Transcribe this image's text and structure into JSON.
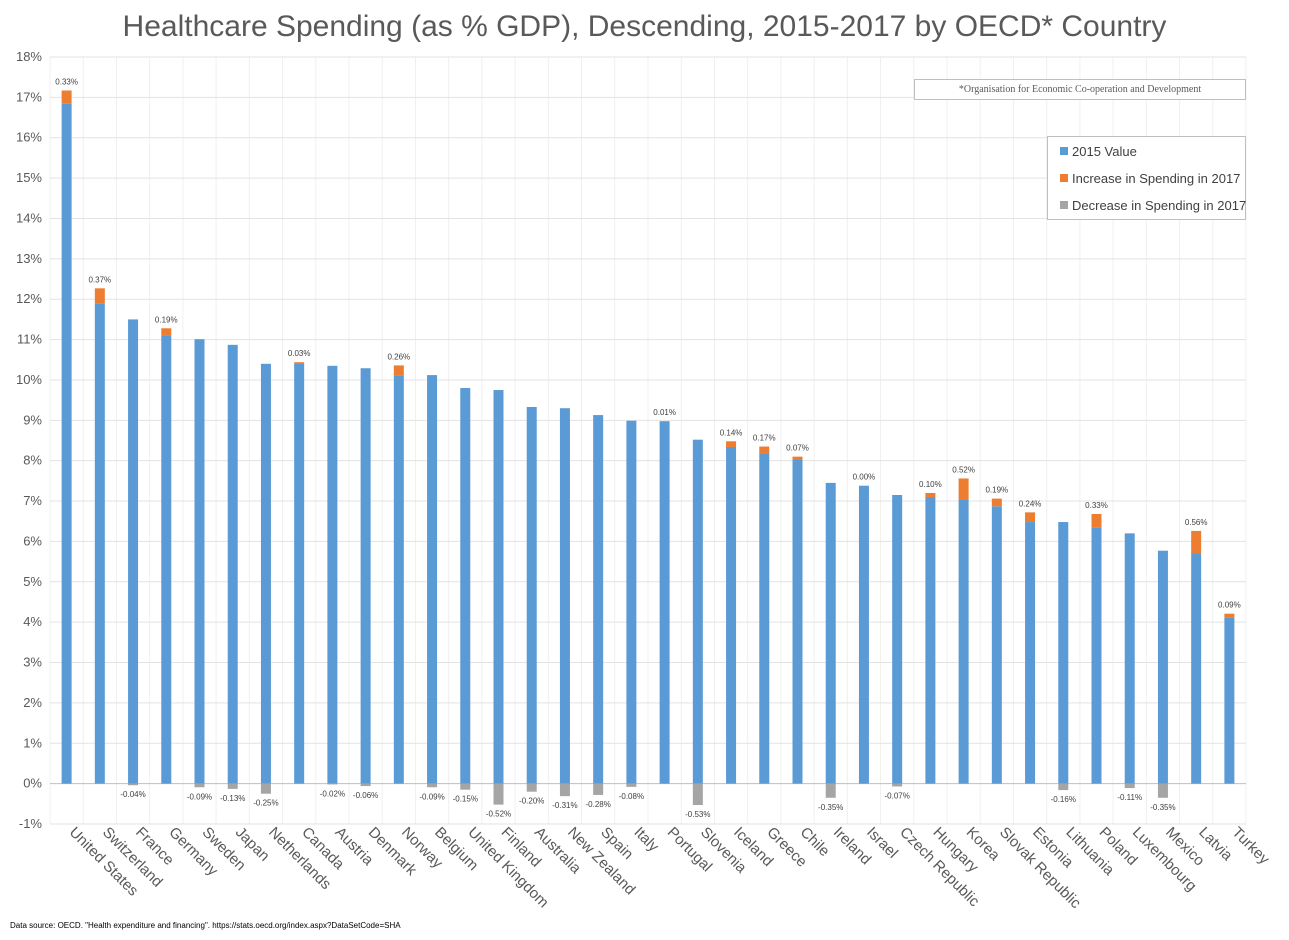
{
  "chart_data": {
    "type": "bar",
    "stacked": true,
    "title": "Healthcare Spending (as % GDP), Descending, 2015-2017 by OECD* Country",
    "footnote": "*Organisation for Economic Co-operation and Development",
    "source": "Data source: OECD. \"Health expenditure and financing\". https://stats.oecd.org/index.aspx?DataSetCode=SHA",
    "ylim": [
      -1,
      18
    ],
    "yticks": [
      -1,
      0,
      1,
      2,
      3,
      4,
      5,
      6,
      7,
      8,
      9,
      10,
      11,
      12,
      13,
      14,
      15,
      16,
      17,
      18
    ],
    "ytick_labels": [
      "-1%",
      "0%",
      "1%",
      "2%",
      "3%",
      "4%",
      "5%",
      "6%",
      "7%",
      "8%",
      "9%",
      "10%",
      "11%",
      "12%",
      "13%",
      "14%",
      "15%",
      "16%",
      "17%",
      "18%"
    ],
    "categories": [
      "United States",
      "Switzerland",
      "France",
      "Germany",
      "Sweden",
      "Japan",
      "Netherlands",
      "Canada",
      "Austria",
      "Denmark",
      "Norway",
      "Belgium",
      "United Kingdom",
      "Finland",
      "Australia",
      "New Zealand",
      "Spain",
      "Italy",
      "Portugal",
      "Slovenia",
      "Iceland",
      "Greece",
      "Chile",
      "Ireland",
      "Israel",
      "Czech Republic",
      "Hungary",
      "Korea",
      "Slovak Republic",
      "Estonia",
      "Lithuania",
      "Poland",
      "Luxembourg",
      "Mexico",
      "Latvia",
      "Turkey"
    ],
    "series": [
      {
        "name": "2015 Value",
        "color": "#5b9bd5",
        "values": [
          16.84,
          11.9,
          11.5,
          11.09,
          11.01,
          10.87,
          10.4,
          10.41,
          10.35,
          10.29,
          10.1,
          10.12,
          9.8,
          9.75,
          9.33,
          9.3,
          9.13,
          8.99,
          8.97,
          8.52,
          8.34,
          8.18,
          8.03,
          7.45,
          7.38,
          7.15,
          7.1,
          7.04,
          6.87,
          6.48,
          6.48,
          6.35,
          6.2,
          5.77,
          5.7,
          4.12
        ]
      },
      {
        "name": "Increase in Spending in 2017",
        "color": "#ed7d31",
        "values": [
          0.33,
          0.37,
          0,
          0.19,
          0,
          0,
          0,
          0.03,
          0,
          0,
          0.26,
          0,
          0,
          0,
          0,
          0,
          0,
          0,
          0.01,
          0,
          0.14,
          0.17,
          0.07,
          0,
          0.0,
          0,
          0.1,
          0.52,
          0.19,
          0.24,
          0,
          0.33,
          0,
          0,
          0.56,
          0.09
        ]
      },
      {
        "name": "Decrease in Spending in 2017",
        "color": "#a5a5a5",
        "values": [
          0,
          0,
          -0.04,
          0,
          -0.09,
          -0.13,
          -0.25,
          0,
          -0.02,
          -0.06,
          0,
          -0.09,
          -0.15,
          -0.52,
          -0.2,
          -0.31,
          -0.28,
          -0.08,
          0,
          -0.53,
          0,
          0,
          0,
          -0.35,
          0,
          -0.07,
          0,
          0,
          0,
          0,
          -0.16,
          0,
          -0.11,
          -0.35,
          0,
          0
        ]
      }
    ],
    "data_labels": [
      "0.33%",
      "0.37%",
      "-0.04%",
      "0.19%",
      "-0.09%",
      "-0.13%",
      "-0.25%",
      "0.03%",
      "-0.02%",
      "-0.06%",
      "0.26%",
      "-0.09%",
      "-0.15%",
      "-0.52%",
      "-0.20%",
      "-0.31%",
      "-0.28%",
      "-0.08%",
      "0.01%",
      "-0.53%",
      "0.14%",
      "0.17%",
      "0.07%",
      "-0.35%",
      "0.00%",
      "-0.07%",
      "0.10%",
      "0.52%",
      "0.19%",
      "0.24%",
      "-0.16%",
      "0.33%",
      "-0.11%",
      "-0.35%",
      "0.56%",
      "0.09%"
    ],
    "legend": [
      "2015 Value",
      "Increase in Spending in 2017",
      "Decrease in Spending in 2017"
    ],
    "legend_position": "top-right",
    "grid": true
  }
}
